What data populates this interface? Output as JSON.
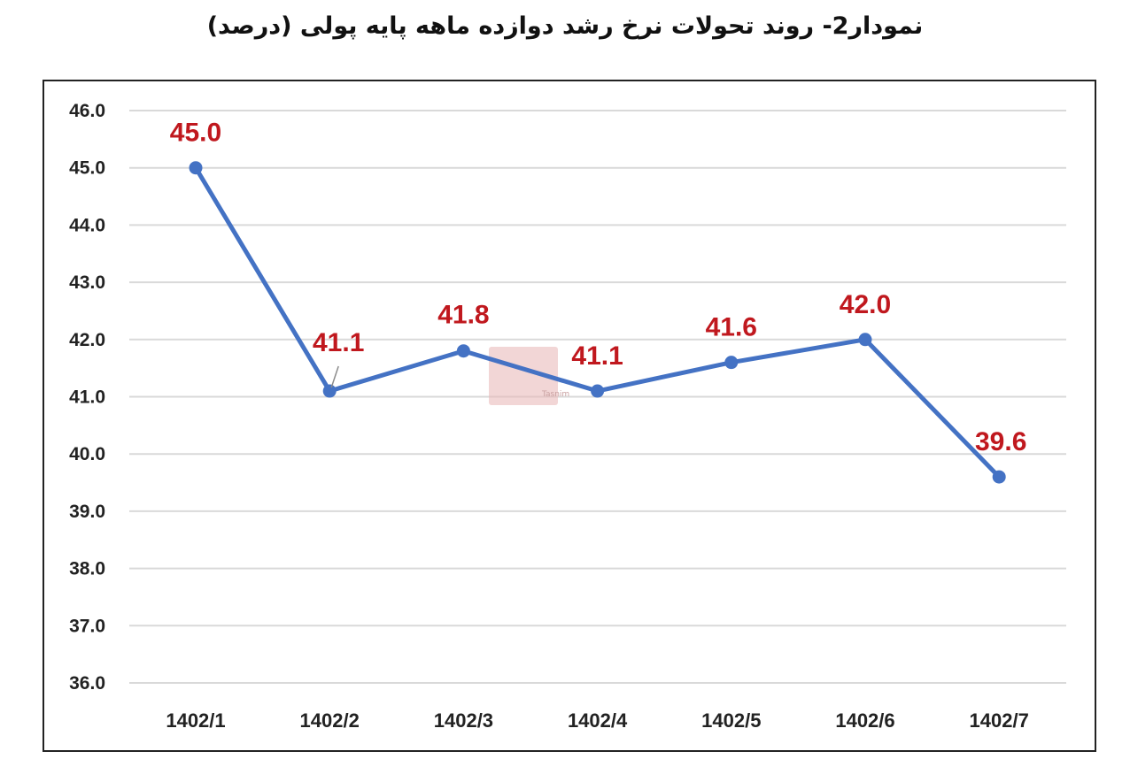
{
  "title": "نمودار2- روند تحولات نرخ رشد دوازده ماهه پایه پولی (درصد)",
  "watermark": "Tasnim",
  "colors": {
    "line": "#4472c4",
    "label": "#c0181e",
    "grid": "#d9d9d9"
  },
  "chart_data": {
    "type": "line",
    "categories": [
      "1402/1",
      "1402/2",
      "1402/3",
      "1402/4",
      "1402/5",
      "1402/6",
      "1402/7"
    ],
    "series": [
      {
        "values": [
          45.0,
          41.1,
          41.8,
          41.1,
          41.6,
          42.0,
          39.6
        ]
      }
    ],
    "data_labels": [
      "45.0",
      "41.1",
      "41.8",
      "41.1",
      "41.6",
      "42.0",
      "39.6"
    ],
    "yticks": [
      "36.0",
      "37.0",
      "38.0",
      "39.0",
      "40.0",
      "41.0",
      "42.0",
      "43.0",
      "44.0",
      "45.0",
      "46.0"
    ],
    "ylim": [
      36,
      46
    ],
    "grid": true,
    "xlabel": "",
    "ylabel": ""
  }
}
